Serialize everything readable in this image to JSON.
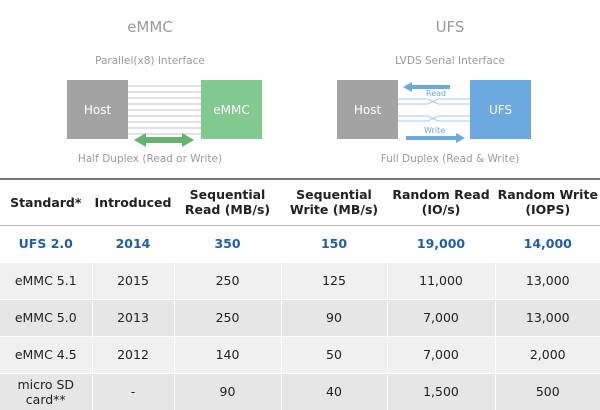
{
  "emmc": {
    "title": "eMMC",
    "interface": "Parallel(x8) Interface",
    "host_label": "Host",
    "device_label": "eMMC",
    "duplex": "Half Duplex (Read or Write)",
    "colors": {
      "host": "#a3a3a3",
      "device": "#82c98f",
      "arrow": "#66b26f"
    }
  },
  "ufs": {
    "title": "UFS",
    "interface": "LVDS Serial Interface",
    "host_label": "Host",
    "device_label": "UFS",
    "read_label": "Read",
    "write_label": "Write",
    "duplex": "Full Duplex (Read & Write)",
    "colors": {
      "host": "#a3a3a3",
      "device": "#6ba9de",
      "accent": "#6ba9de"
    }
  },
  "table": {
    "headers": [
      "Standard*",
      "Introduced",
      "Sequential Read (MB/s)",
      "Sequential Write (MB/s)",
      "Random Read (IO/s)",
      "Random Write (IOPS)"
    ],
    "rows": [
      [
        "UFS 2.0",
        "2014",
        "350",
        "150",
        "19,000",
        "14,000"
      ],
      [
        "eMMC 5.1",
        "2015",
        "250",
        "125",
        "11,000",
        "13,000"
      ],
      [
        "eMMC 5.0",
        "2013",
        "250",
        "90",
        "7,000",
        "13,000"
      ],
      [
        "eMMC 4.5",
        "2012",
        "140",
        "50",
        "7,000",
        "2,000"
      ],
      [
        "micro SD card**",
        "-",
        "90",
        "40",
        "1,500",
        "500"
      ]
    ],
    "highlight_color": "#1f5fa8"
  }
}
